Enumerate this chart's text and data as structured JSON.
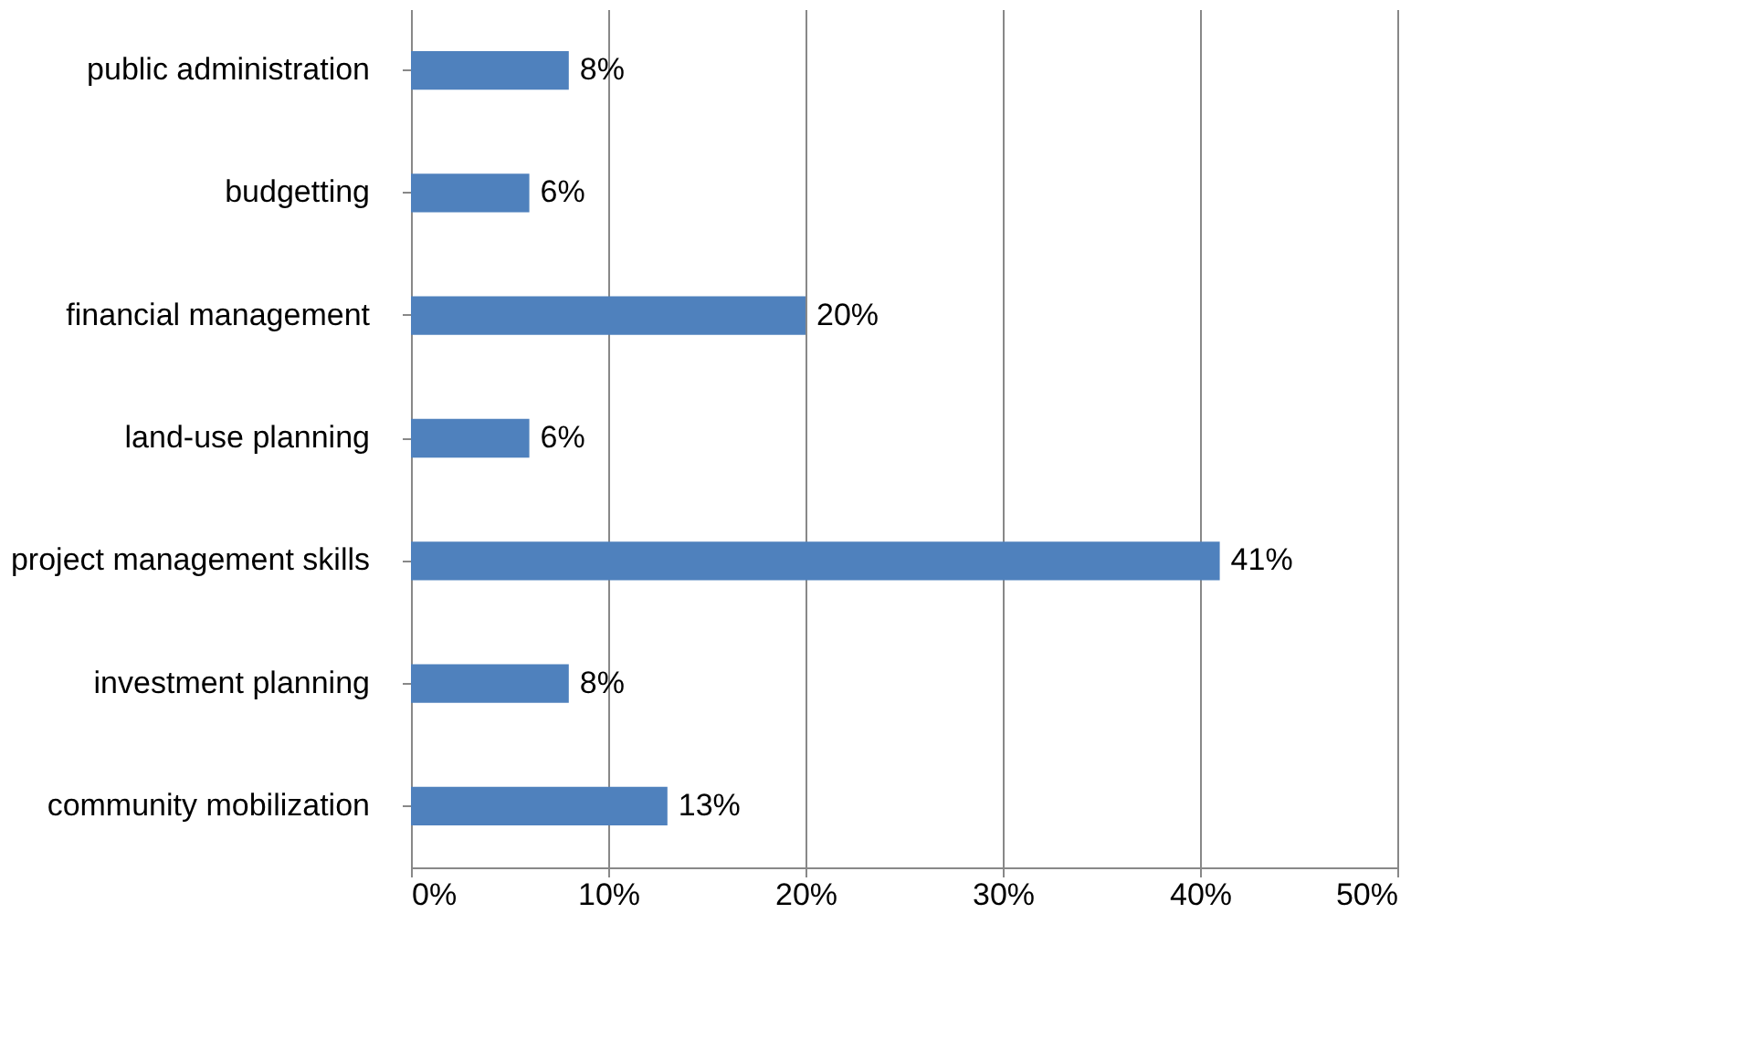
{
  "chart_data": {
    "type": "bar",
    "orientation": "horizontal",
    "categories": [
      "public administration",
      "budgetting",
      "financial management",
      "land-use planning",
      "project management skills",
      "investment planning",
      "community mobilization"
    ],
    "values": [
      8,
      6,
      20,
      6,
      41,
      8,
      13
    ],
    "value_labels": [
      "8%",
      "6%",
      "20%",
      "6%",
      "41%",
      "8%",
      "13%"
    ],
    "color": "#4f81bd",
    "xlim": [
      0,
      50
    ],
    "xticks": [
      {
        "value": 0,
        "label": "0%"
      },
      {
        "value": 10,
        "label": "10%"
      },
      {
        "value": 20,
        "label": "20%"
      },
      {
        "value": 30,
        "label": "30%"
      },
      {
        "value": 40,
        "label": "40%"
      },
      {
        "value": 50,
        "label": "50%"
      }
    ],
    "grid": "x"
  }
}
